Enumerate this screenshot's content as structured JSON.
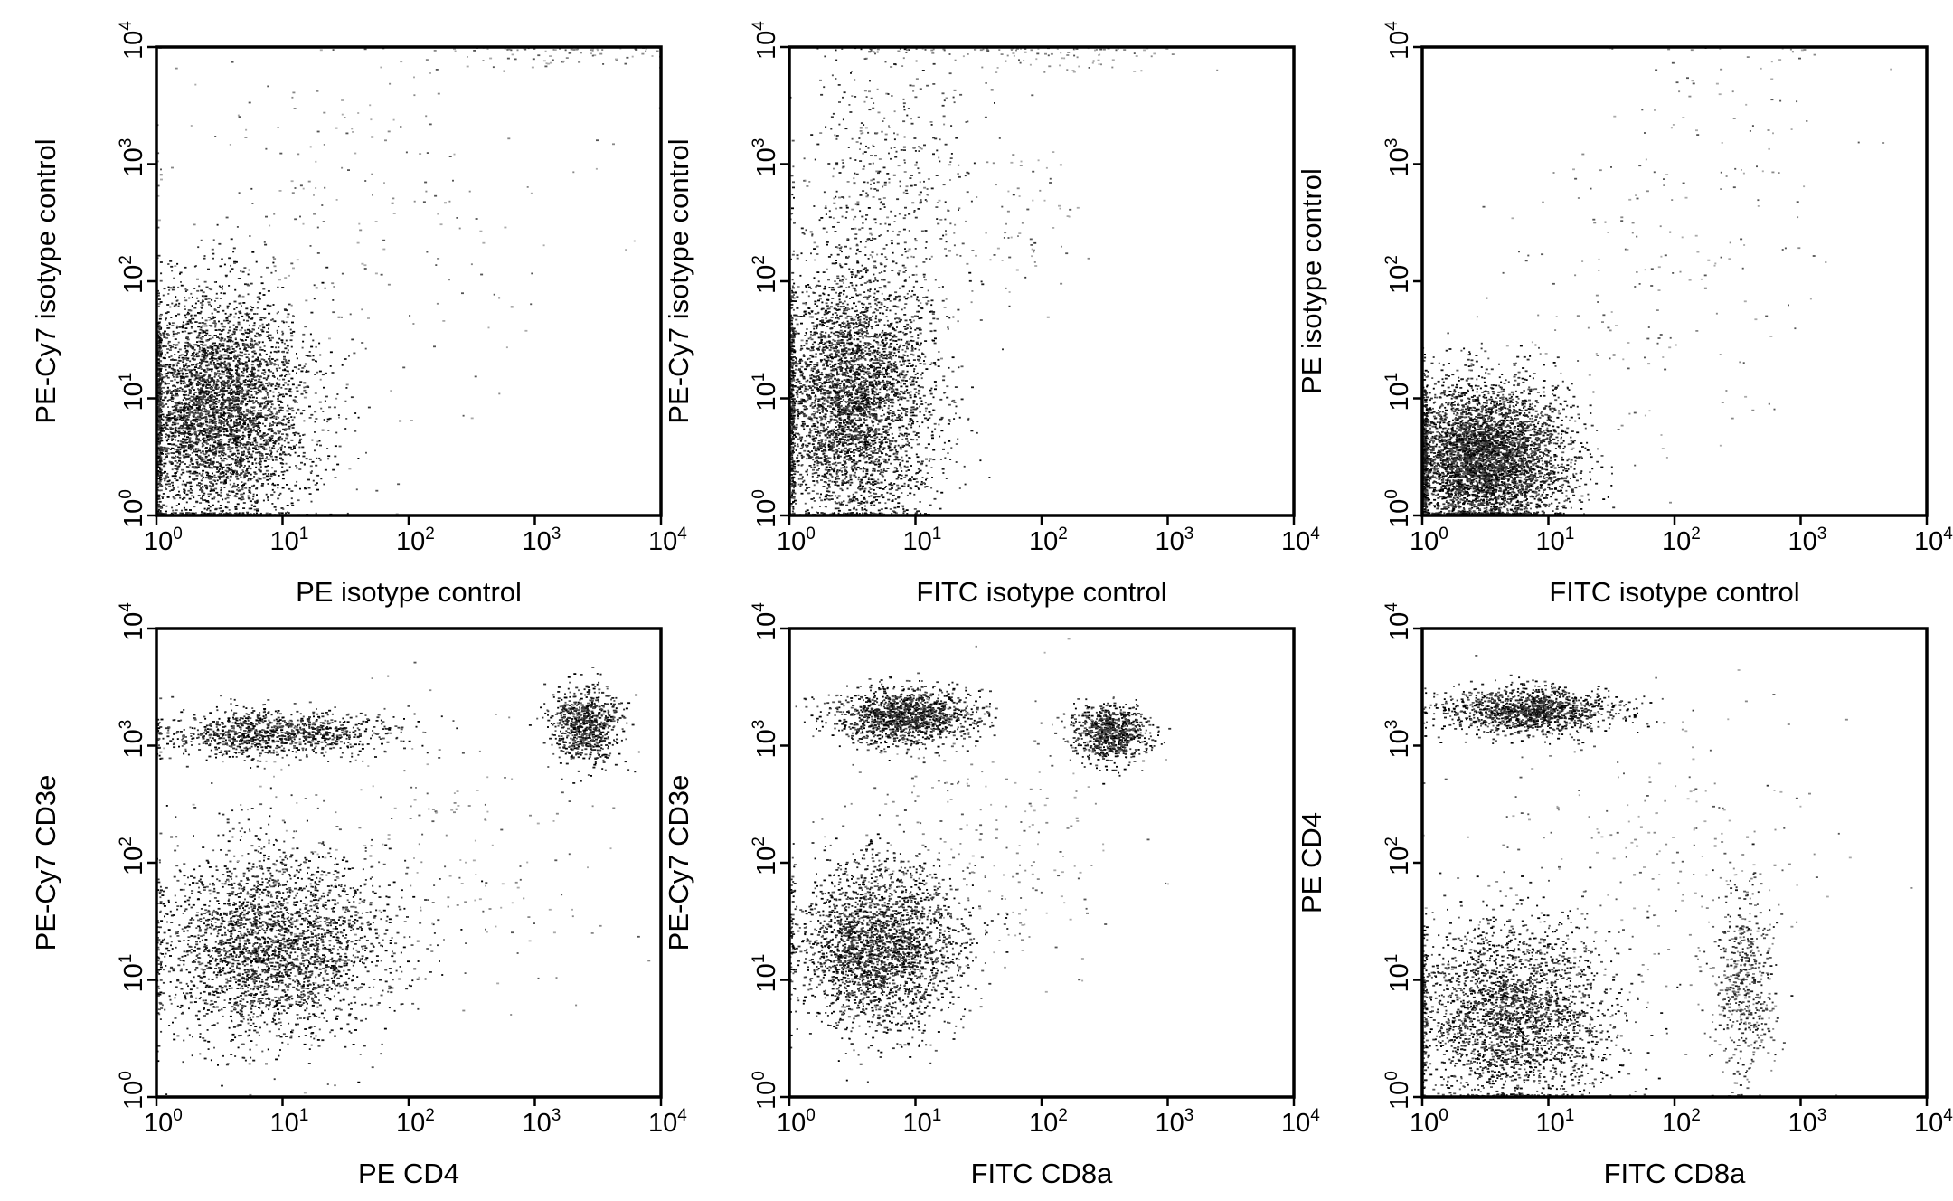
{
  "chart_data": [
    {
      "type": "scatter",
      "panel": "top-left",
      "xlabel": "PE isotype control",
      "ylabel": "PE-Cy7 isotype control",
      "xscale": "log",
      "yscale": "log",
      "xlim": [
        1,
        10000
      ],
      "ylim": [
        1,
        10000
      ],
      "xticks": [
        {
          "base": "10",
          "exp": "0"
        },
        {
          "base": "10",
          "exp": "1"
        },
        {
          "base": "10",
          "exp": "2"
        },
        {
          "base": "10",
          "exp": "3"
        },
        {
          "base": "10",
          "exp": "4"
        }
      ],
      "yticks": [
        {
          "base": "10",
          "exp": "0"
        },
        {
          "base": "10",
          "exp": "1"
        },
        {
          "base": "10",
          "exp": "2"
        },
        {
          "base": "10",
          "exp": "3"
        },
        {
          "base": "10",
          "exp": "4"
        }
      ],
      "grid": false,
      "populations": [
        {
          "x": 3,
          "y": 8,
          "spread_x": 0.35,
          "spread_y": 0.5,
          "weight": 0.86,
          "density": "dense"
        },
        {
          "x": 30,
          "y": 300,
          "spread_x": 0.9,
          "spread_y": 0.9,
          "weight": 0.1,
          "density": "sparse"
        },
        {
          "x": 1500,
          "y": 9000,
          "spread_x": 0.6,
          "spread_y": 0.08,
          "weight": 0.04,
          "density": "sparse"
        }
      ]
    },
    {
      "type": "scatter",
      "panel": "top-middle",
      "xlabel": "FITC isotype control",
      "ylabel": "PE-Cy7 isotype control",
      "xscale": "log",
      "yscale": "log",
      "xlim": [
        1,
        10000
      ],
      "ylim": [
        1,
        10000
      ],
      "xticks": [
        {
          "base": "10",
          "exp": "0"
        },
        {
          "base": "10",
          "exp": "1"
        },
        {
          "base": "10",
          "exp": "2"
        },
        {
          "base": "10",
          "exp": "3"
        },
        {
          "base": "10",
          "exp": "4"
        }
      ],
      "yticks": [
        {
          "base": "10",
          "exp": "0"
        },
        {
          "base": "10",
          "exp": "1"
        },
        {
          "base": "10",
          "exp": "2"
        },
        {
          "base": "10",
          "exp": "3"
        },
        {
          "base": "10",
          "exp": "4"
        }
      ],
      "grid": false,
      "populations": [
        {
          "x": 3,
          "y": 10,
          "spread_x": 0.33,
          "spread_y": 0.55,
          "weight": 0.78,
          "density": "dense"
        },
        {
          "x": 6,
          "y": 600,
          "spread_x": 0.35,
          "spread_y": 0.7,
          "weight": 0.15,
          "density": "medium"
        },
        {
          "x": 60,
          "y": 300,
          "spread_x": 0.3,
          "spread_y": 0.45,
          "weight": 0.03,
          "density": "sparse"
        },
        {
          "x": 100,
          "y": 9000,
          "spread_x": 0.5,
          "spread_y": 0.08,
          "weight": 0.04,
          "density": "sparse"
        }
      ]
    },
    {
      "type": "scatter",
      "panel": "top-right",
      "xlabel": "FITC isotype control",
      "ylabel": "PE isotype control",
      "xscale": "log",
      "yscale": "log",
      "xlim": [
        1,
        10000
      ],
      "ylim": [
        1,
        10000
      ],
      "xticks": [
        {
          "base": "10",
          "exp": "0"
        },
        {
          "base": "10",
          "exp": "1"
        },
        {
          "base": "10",
          "exp": "2"
        },
        {
          "base": "10",
          "exp": "3"
        },
        {
          "base": "10",
          "exp": "4"
        }
      ],
      "yticks": [
        {
          "base": "10",
          "exp": "0"
        },
        {
          "base": "10",
          "exp": "1"
        },
        {
          "base": "10",
          "exp": "2"
        },
        {
          "base": "10",
          "exp": "3"
        },
        {
          "base": "10",
          "exp": "4"
        }
      ],
      "grid": false,
      "populations": [
        {
          "x": 3,
          "y": 3,
          "spread_x": 0.33,
          "spread_y": 0.33,
          "weight": 0.9,
          "density": "dense"
        },
        {
          "x": 50,
          "y": 80,
          "spread_x": 0.7,
          "spread_y": 0.7,
          "weight": 0.07,
          "density": "sparse"
        },
        {
          "x": 300,
          "y": 3000,
          "spread_x": 0.5,
          "spread_y": 0.5,
          "weight": 0.03,
          "density": "sparse"
        }
      ]
    },
    {
      "type": "scatter",
      "panel": "bottom-left",
      "xlabel": "PE CD4",
      "ylabel": "PE-Cy7 CD3e",
      "xscale": "log",
      "yscale": "log",
      "xlim": [
        1,
        10000
      ],
      "ylim": [
        1,
        10000
      ],
      "xticks": [
        {
          "base": "10",
          "exp": "0"
        },
        {
          "base": "10",
          "exp": "1"
        },
        {
          "base": "10",
          "exp": "2"
        },
        {
          "base": "10",
          "exp": "3"
        },
        {
          "base": "10",
          "exp": "4"
        }
      ],
      "yticks": [
        {
          "base": "10",
          "exp": "0"
        },
        {
          "base": "10",
          "exp": "1"
        },
        {
          "base": "10",
          "exp": "2"
        },
        {
          "base": "10",
          "exp": "3"
        },
        {
          "base": "10",
          "exp": "4"
        }
      ],
      "grid": false,
      "populations": [
        {
          "x": 8,
          "y": 20,
          "spread_x": 0.45,
          "spread_y": 0.4,
          "weight": 0.55,
          "density": "dense"
        },
        {
          "x": 8,
          "y": 1300,
          "spread_x": 0.45,
          "spread_y": 0.1,
          "weight": 0.2,
          "density": "dense"
        },
        {
          "x": 2500,
          "y": 1500,
          "spread_x": 0.13,
          "spread_y": 0.16,
          "weight": 0.15,
          "density": "dense"
        },
        {
          "x": 100,
          "y": 100,
          "spread_x": 0.9,
          "spread_y": 0.8,
          "weight": 0.1,
          "density": "sparse"
        }
      ]
    },
    {
      "type": "scatter",
      "panel": "bottom-middle",
      "xlabel": "FITC CD8a",
      "ylabel": "PE-Cy7 CD3e",
      "xscale": "log",
      "yscale": "log",
      "xlim": [
        1,
        10000
      ],
      "ylim": [
        1,
        10000
      ],
      "xticks": [
        {
          "base": "10",
          "exp": "0"
        },
        {
          "base": "10",
          "exp": "1"
        },
        {
          "base": "10",
          "exp": "2"
        },
        {
          "base": "10",
          "exp": "3"
        },
        {
          "base": "10",
          "exp": "4"
        }
      ],
      "yticks": [
        {
          "base": "10",
          "exp": "0"
        },
        {
          "base": "10",
          "exp": "1"
        },
        {
          "base": "10",
          "exp": "2"
        },
        {
          "base": "10",
          "exp": "3"
        },
        {
          "base": "10",
          "exp": "4"
        }
      ],
      "grid": false,
      "populations": [
        {
          "x": 5,
          "y": 20,
          "spread_x": 0.33,
          "spread_y": 0.35,
          "weight": 0.5,
          "density": "dense"
        },
        {
          "x": 8,
          "y": 1800,
          "spread_x": 0.28,
          "spread_y": 0.12,
          "weight": 0.25,
          "density": "dense"
        },
        {
          "x": 350,
          "y": 1300,
          "spread_x": 0.15,
          "spread_y": 0.12,
          "weight": 0.15,
          "density": "dense"
        },
        {
          "x": 40,
          "y": 150,
          "spread_x": 0.6,
          "spread_y": 0.6,
          "weight": 0.1,
          "density": "sparse"
        }
      ]
    },
    {
      "type": "scatter",
      "panel": "bottom-right",
      "xlabel": "FITC CD8a",
      "ylabel": "PE CD4",
      "xscale": "log",
      "yscale": "log",
      "xlim": [
        1,
        10000
      ],
      "ylim": [
        1,
        10000
      ],
      "xticks": [
        {
          "base": "10",
          "exp": "0"
        },
        {
          "base": "10",
          "exp": "1"
        },
        {
          "base": "10",
          "exp": "2"
        },
        {
          "base": "10",
          "exp": "3"
        },
        {
          "base": "10",
          "exp": "4"
        }
      ],
      "yticks": [
        {
          "base": "10",
          "exp": "0"
        },
        {
          "base": "10",
          "exp": "1"
        },
        {
          "base": "10",
          "exp": "2"
        },
        {
          "base": "10",
          "exp": "3"
        },
        {
          "base": "10",
          "exp": "4"
        }
      ],
      "grid": false,
      "populations": [
        {
          "x": 5,
          "y": 5,
          "spread_x": 0.4,
          "spread_y": 0.4,
          "weight": 0.5,
          "density": "dense"
        },
        {
          "x": 7,
          "y": 2000,
          "spread_x": 0.35,
          "spread_y": 0.1,
          "weight": 0.25,
          "density": "dense"
        },
        {
          "x": 350,
          "y": 10,
          "spread_x": 0.12,
          "spread_y": 0.4,
          "weight": 0.15,
          "density": "medium"
        },
        {
          "x": 60,
          "y": 100,
          "spread_x": 0.7,
          "spread_y": 0.7,
          "weight": 0.1,
          "density": "sparse"
        }
      ]
    }
  ]
}
